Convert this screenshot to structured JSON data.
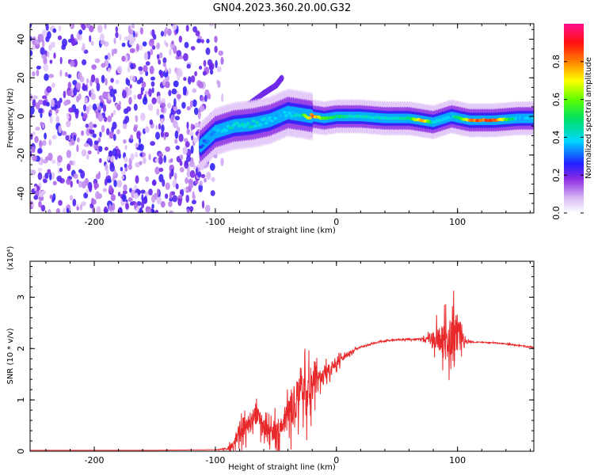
{
  "title": "GN04.2023.360.20.00.G32",
  "chart_data": [
    {
      "type": "heatmap",
      "xlabel": "Height of straight line (km)",
      "ylabel": "Frequency (Hz)",
      "xlim": [
        -253,
        163
      ],
      "ylim": [
        -50,
        48
      ],
      "xticks": [
        -200,
        -100,
        0,
        100
      ],
      "yticks": [
        -40,
        -20,
        0,
        20,
        40
      ],
      "colorbar": {
        "label": "Normalized spectral amplitude",
        "range": [
          0,
          1
        ],
        "ticks": [
          0.0,
          0.2,
          0.4,
          0.6,
          0.8
        ],
        "tick_labels": [
          "0.0",
          "0.2",
          "0.4",
          "0.6",
          "0.8"
        ],
        "colormap": "rainbow (white-purple-blue-cyan-green-yellow-orange-red-magenta)"
      },
      "noise_region": {
        "x": [
          -253,
          -100
        ],
        "y": [
          -50,
          48
        ],
        "amplitude": "low (0.0-0.15)"
      },
      "ridge": [
        {
          "x": -110,
          "y": -14,
          "amp": 0.3
        },
        {
          "x": -100,
          "y": -8,
          "amp": 0.4
        },
        {
          "x": -85,
          "y": -5,
          "amp": 0.45
        },
        {
          "x": -70,
          "y": -4,
          "amp": 0.45
        },
        {
          "x": -55,
          "y": -2,
          "amp": 0.4
        },
        {
          "x": -40,
          "y": 2,
          "amp": 0.4
        },
        {
          "x": -30,
          "y": 1,
          "amp": 0.45
        },
        {
          "x": -20,
          "y": 0,
          "amp": 0.9
        },
        {
          "x": -10,
          "y": -1,
          "amp": 0.6
        },
        {
          "x": 0,
          "y": 0,
          "amp": 0.55
        },
        {
          "x": 20,
          "y": 0,
          "amp": 0.45
        },
        {
          "x": 40,
          "y": -1,
          "amp": 0.45
        },
        {
          "x": 60,
          "y": -1,
          "amp": 0.5
        },
        {
          "x": 70,
          "y": -2,
          "amp": 0.9
        },
        {
          "x": 80,
          "y": -3,
          "amp": 0.45
        },
        {
          "x": 95,
          "y": 0,
          "amp": 0.4
        },
        {
          "x": 110,
          "y": -2,
          "amp": 0.85
        },
        {
          "x": 130,
          "y": -2,
          "amp": 0.9
        },
        {
          "x": 150,
          "y": -1,
          "amp": 0.4
        },
        {
          "x": 163,
          "y": -1,
          "amp": 0.4
        }
      ],
      "secondary_ridge": [
        {
          "x": -90,
          "y": -5
        },
        {
          "x": -75,
          "y": 5
        },
        {
          "x": -60,
          "y": 12
        },
        {
          "x": -50,
          "y": 16
        },
        {
          "x": -45,
          "y": 20
        }
      ]
    },
    {
      "type": "line",
      "xlabel": "Height of straight line (km)",
      "ylabel": "SNR (10 * v/v)",
      "y_multiplier": "(x10⁴)",
      "xlim": [
        -253,
        163
      ],
      "ylim": [
        0,
        3.7
      ],
      "xticks": [
        -200,
        -100,
        0,
        100
      ],
      "yticks": [
        0,
        1,
        2,
        3
      ],
      "color": "#e8282a",
      "series": [
        {
          "x": [
            -253,
            -200,
            -150,
            -100,
            -90,
            -85,
            -80,
            -75,
            -70,
            -65,
            -60,
            -55,
            -50,
            -45,
            -40,
            -35,
            -30,
            -25,
            -20,
            -15,
            -10,
            -5,
            0,
            5,
            10,
            15,
            20,
            30,
            40,
            50,
            60,
            70,
            75,
            80,
            85,
            90,
            95,
            100,
            105,
            110,
            120,
            130,
            140,
            150,
            163
          ],
          "y": [
            0.02,
            0.02,
            0.02,
            0.03,
            0.05,
            0.15,
            0.4,
            0.5,
            0.6,
            0.7,
            0.45,
            0.4,
            0.45,
            0.55,
            0.75,
            0.9,
            1.0,
            1.15,
            1.3,
            1.4,
            1.5,
            1.6,
            1.7,
            1.8,
            1.9,
            1.97,
            2.03,
            2.1,
            2.15,
            2.17,
            2.18,
            2.18,
            2.19,
            2.18,
            2.2,
            2.18,
            2.17,
            2.15,
            2.14,
            2.13,
            2.12,
            2.11,
            2.09,
            2.06,
            2.02
          ],
          "noise_amplitude": [
            0,
            0,
            0,
            0,
            0.05,
            0.2,
            0.5,
            0.45,
            0.45,
            0.4,
            0.4,
            0.45,
            0.55,
            0.6,
            0.75,
            0.9,
            1.0,
            1.0,
            0.8,
            0.35,
            0.3,
            0.25,
            0.2,
            0.12,
            0.1,
            0.06,
            0.04,
            0.03,
            0.03,
            0.03,
            0.03,
            0.05,
            0.1,
            0.4,
            0.55,
            0.7,
            0.9,
            1.3,
            0.15,
            0.03,
            0.02,
            0.02,
            0.02,
            0.02,
            0.02
          ]
        }
      ]
    }
  ]
}
